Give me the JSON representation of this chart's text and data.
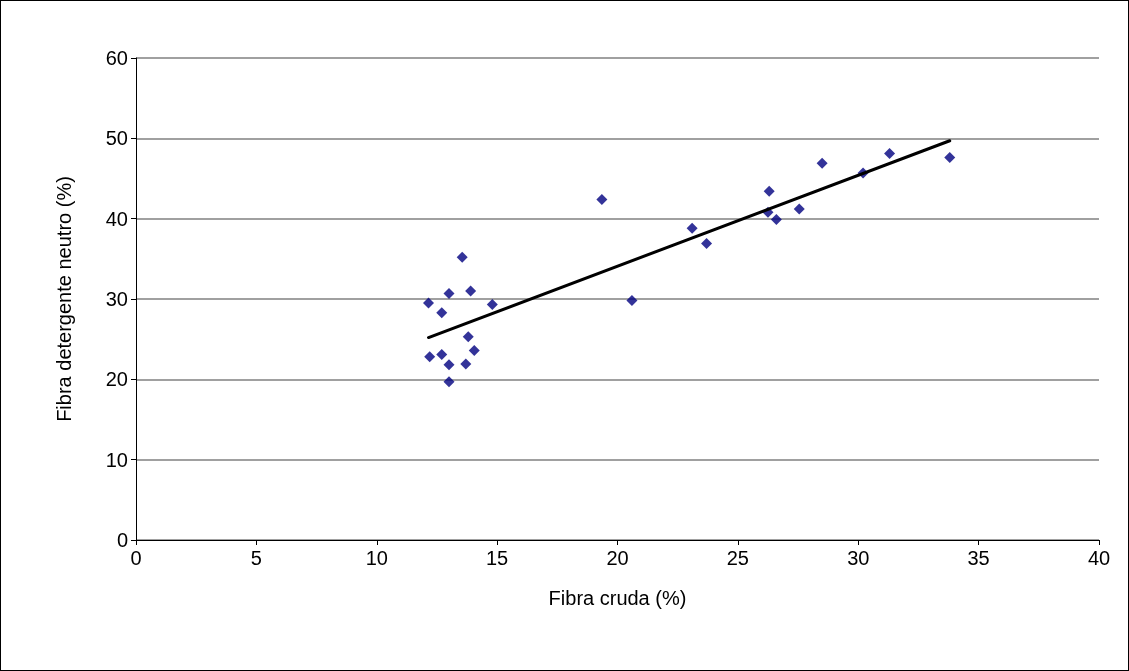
{
  "chart_data": {
    "type": "scatter",
    "xlabel": "Fibra cruda (%)",
    "ylabel": "Fibra detergente neutro (%)",
    "xlim": [
      0,
      40
    ],
    "xticks": [
      0,
      5,
      10,
      15,
      20,
      25,
      30,
      35,
      40
    ],
    "ylim": [
      0,
      60
    ],
    "yticks": [
      0,
      10,
      20,
      30,
      40,
      50,
      60
    ],
    "grid": "y",
    "marker": "diamond",
    "series": [
      {
        "type": "scatter",
        "color": "#000080",
        "x": [
          12.15,
          12.2,
          12.7,
          12.7,
          13.0,
          13.0,
          13.0,
          13.55,
          13.7,
          13.8,
          13.9,
          14.05,
          14.8,
          19.35,
          20.6,
          23.1,
          23.7,
          26.3,
          26.25,
          26.6,
          27.55,
          28.5,
          30.2,
          31.3,
          33.8
        ],
        "values": [
          29.5,
          22.8,
          28.3,
          23.1,
          30.7,
          21.8,
          19.7,
          35.2,
          21.9,
          25.3,
          31.0,
          23.6,
          29.3,
          42.4,
          29.8,
          38.8,
          36.9,
          43.4,
          40.8,
          39.9,
          41.2,
          46.9,
          45.7,
          48.1,
          47.6
        ]
      },
      {
        "type": "line",
        "color": "#000000",
        "x": [
          12.15,
          33.8
        ],
        "values": [
          25.2,
          49.7
        ],
        "line_style": "solid",
        "marker": "none"
      }
    ]
  }
}
